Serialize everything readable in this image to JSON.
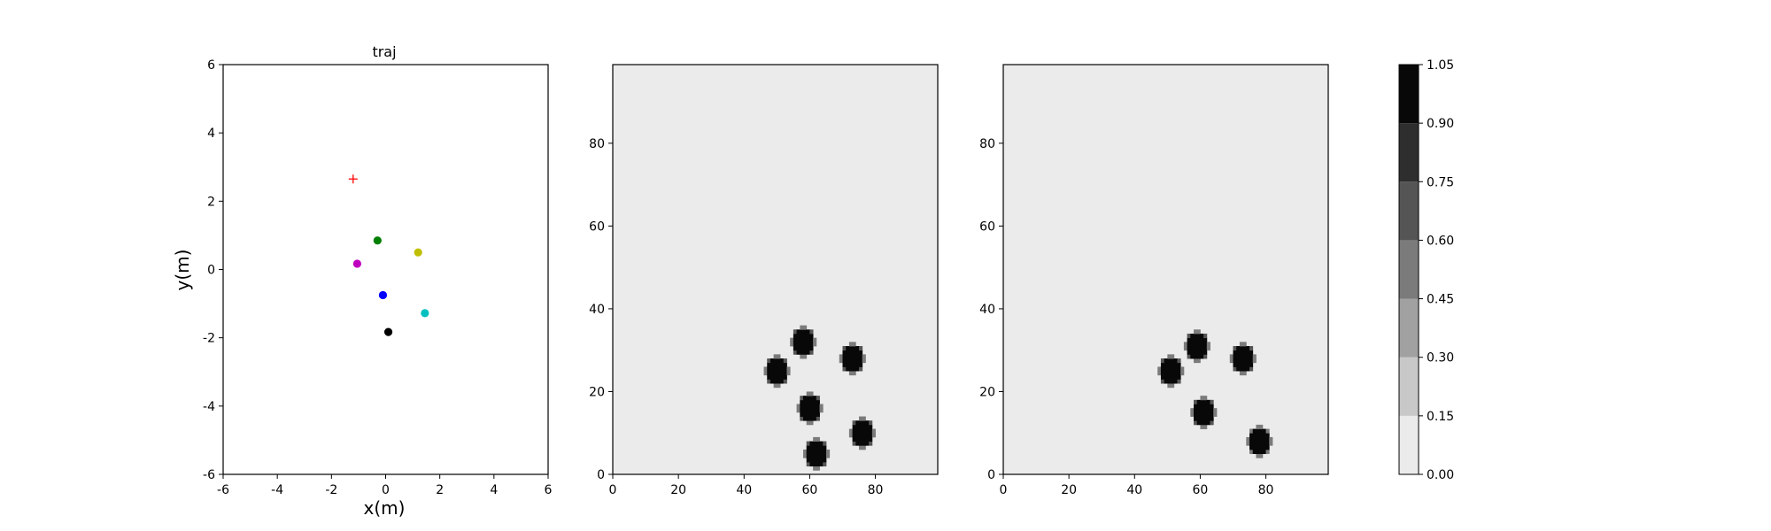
{
  "chart_data": [
    {
      "type": "scatter",
      "title": "traj",
      "xlabel": "x(m)",
      "ylabel": "y(m)",
      "xlim": [
        -6,
        6
      ],
      "ylim": [
        -6,
        6
      ],
      "xticks": [
        -6,
        -4,
        -2,
        0,
        2,
        4,
        6
      ],
      "yticks": [
        -6,
        -4,
        -2,
        0,
        2,
        4,
        6
      ],
      "grid": false,
      "points": [
        {
          "x": -1.2,
          "y": 2.65,
          "color": "#ff0000",
          "marker": "plus"
        },
        {
          "x": -0.3,
          "y": 0.85,
          "color": "#008000",
          "marker": "circle"
        },
        {
          "x": 1.2,
          "y": 0.5,
          "color": "#bfbf00",
          "marker": "circle"
        },
        {
          "x": -1.05,
          "y": 0.17,
          "color": "#bf00bf",
          "marker": "circle"
        },
        {
          "x": -0.1,
          "y": -0.75,
          "color": "#0000ff",
          "marker": "circle"
        },
        {
          "x": 1.45,
          "y": -1.28,
          "color": "#00bfbf",
          "marker": "circle"
        },
        {
          "x": 0.1,
          "y": -1.83,
          "color": "#000000",
          "marker": "circle"
        }
      ]
    },
    {
      "type": "heatmap",
      "xlim": [
        0,
        99
      ],
      "ylim": [
        0,
        99
      ],
      "xticks": [
        0,
        20,
        40,
        60,
        80
      ],
      "yticks": [
        0,
        20,
        40,
        60,
        80
      ],
      "background_value": 0.05,
      "blobs": [
        {
          "x": 58,
          "y": 32,
          "value": 1.0
        },
        {
          "x": 50,
          "y": 25,
          "value": 1.0
        },
        {
          "x": 73,
          "y": 28,
          "value": 1.0
        },
        {
          "x": 60,
          "y": 16,
          "value": 1.0
        },
        {
          "x": 76,
          "y": 10,
          "value": 1.0
        },
        {
          "x": 62,
          "y": 5,
          "value": 1.0
        }
      ]
    },
    {
      "type": "heatmap",
      "xlim": [
        0,
        99
      ],
      "ylim": [
        0,
        99
      ],
      "xticks": [
        0,
        20,
        40,
        60,
        80
      ],
      "yticks": [
        0,
        20,
        40,
        60,
        80
      ],
      "background_value": 0.05,
      "blobs": [
        {
          "x": 59,
          "y": 31,
          "value": 1.0
        },
        {
          "x": 51,
          "y": 25,
          "value": 1.0
        },
        {
          "x": 73,
          "y": 28,
          "value": 1.0
        },
        {
          "x": 61,
          "y": 15,
          "value": 1.0
        },
        {
          "x": 78,
          "y": 8,
          "value": 0.9
        }
      ]
    },
    {
      "type": "colorbar",
      "levels": [
        0.0,
        0.15,
        0.3,
        0.45,
        0.6,
        0.75,
        0.9,
        1.05
      ],
      "tick_labels": [
        "0.00",
        "0.15",
        "0.30",
        "0.45",
        "0.60",
        "0.75",
        "0.90",
        "1.05"
      ],
      "colors": [
        "#ebebeb",
        "#c8c8c8",
        "#a1a1a1",
        "#7b7b7b",
        "#555555",
        "#2e2e2e",
        "#080808"
      ]
    }
  ]
}
